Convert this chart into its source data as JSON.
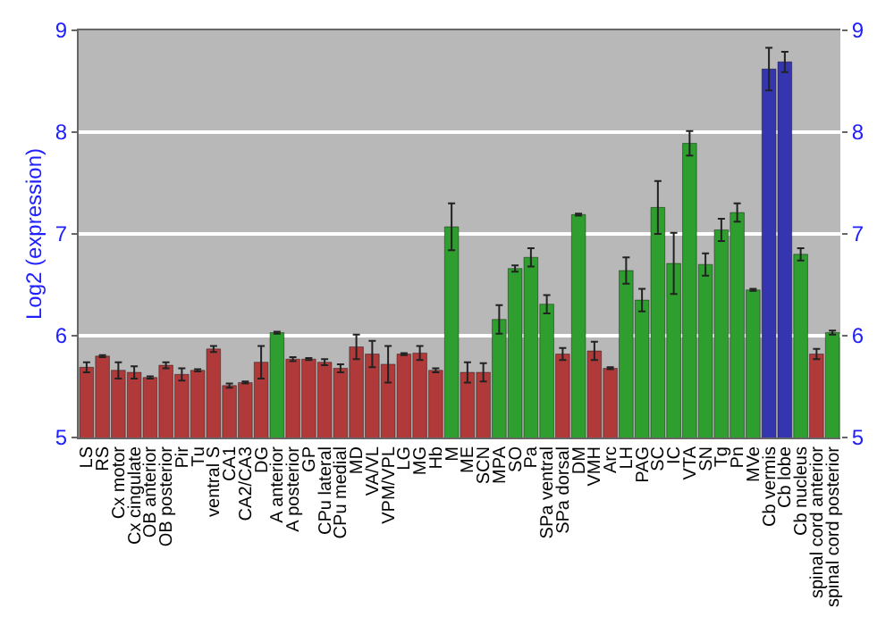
{
  "chart_data": {
    "type": "bar",
    "ylabel": "Log2 (expression)",
    "categories": [
      "LS",
      "RS",
      "Cx motor",
      "Cx cingulate",
      "OB anterior",
      "OB posterior",
      "Pir",
      "Tu",
      "ventral S",
      "CA1",
      "CA2/CA3",
      "DG",
      "A anterior",
      "A posterior",
      "GP",
      "CPu lateral",
      "CPu medial",
      "MD",
      "VA/VL",
      "VPM/VPL",
      "LG",
      "MG",
      "Hb",
      "M",
      "ME",
      "SCN",
      "MPA",
      "SO",
      "Pa",
      "SPa ventral",
      "SPa dorsal",
      "DM",
      "VMH",
      "Arc",
      "LH",
      "PAG",
      "SC",
      "IC",
      "VTA",
      "SN",
      "Tg",
      "Pn",
      "MVe",
      "Cb vermis",
      "Cb lobe",
      "Cb nucleus",
      "spinal cord anterior",
      "spinal cord posterior"
    ],
    "values": [
      5.69,
      5.8,
      5.66,
      5.64,
      5.59,
      5.71,
      5.62,
      5.66,
      5.87,
      5.51,
      5.54,
      5.74,
      6.03,
      5.77,
      5.77,
      5.74,
      5.68,
      5.89,
      5.82,
      5.72,
      5.82,
      5.83,
      5.66,
      7.07,
      5.64,
      5.64,
      6.16,
      6.66,
      6.77,
      6.31,
      5.82,
      7.19,
      5.85,
      5.68,
      6.64,
      6.35,
      7.26,
      6.71,
      7.89,
      6.7,
      7.04,
      7.21,
      6.45,
      8.62,
      8.69,
      6.8,
      5.82,
      6.03
    ],
    "errors": [
      0.05,
      0.01,
      0.08,
      0.06,
      0.01,
      0.03,
      0.06,
      0.01,
      0.03,
      0.02,
      0.01,
      0.16,
      0.01,
      0.02,
      0.01,
      0.03,
      0.04,
      0.12,
      0.13,
      0.18,
      0.01,
      0.07,
      0.02,
      0.23,
      0.1,
      0.09,
      0.14,
      0.03,
      0.09,
      0.09,
      0.06,
      0.01,
      0.09,
      0.01,
      0.13,
      0.11,
      0.26,
      0.3,
      0.12,
      0.11,
      0.11,
      0.09,
      0.01,
      0.21,
      0.1,
      0.06,
      0.05,
      0.02
    ],
    "colors": [
      "#b03a3a",
      "#b03a3a",
      "#b03a3a",
      "#b03a3a",
      "#b03a3a",
      "#b03a3a",
      "#b03a3a",
      "#b03a3a",
      "#b03a3a",
      "#b03a3a",
      "#b03a3a",
      "#b03a3a",
      "#2e9e2e",
      "#b03a3a",
      "#b03a3a",
      "#b03a3a",
      "#b03a3a",
      "#b03a3a",
      "#b03a3a",
      "#b03a3a",
      "#b03a3a",
      "#b03a3a",
      "#b03a3a",
      "#2e9e2e",
      "#b03a3a",
      "#b03a3a",
      "#2e9e2e",
      "#2e9e2e",
      "#2e9e2e",
      "#2e9e2e",
      "#b03a3a",
      "#2e9e2e",
      "#b03a3a",
      "#b03a3a",
      "#2e9e2e",
      "#2e9e2e",
      "#2e9e2e",
      "#2e9e2e",
      "#2e9e2e",
      "#2e9e2e",
      "#2e9e2e",
      "#2e9e2e",
      "#2e9e2e",
      "#3535b0",
      "#3535b0",
      "#2e9e2e",
      "#b03a3a",
      "#2e9e2e"
    ],
    "ylim": [
      5,
      9
    ],
    "yticks": [
      5,
      6,
      7,
      8,
      9
    ],
    "y2lim": [
      5,
      9
    ],
    "y2ticks": [
      5,
      6,
      7,
      8,
      9
    ],
    "grid": "y"
  }
}
